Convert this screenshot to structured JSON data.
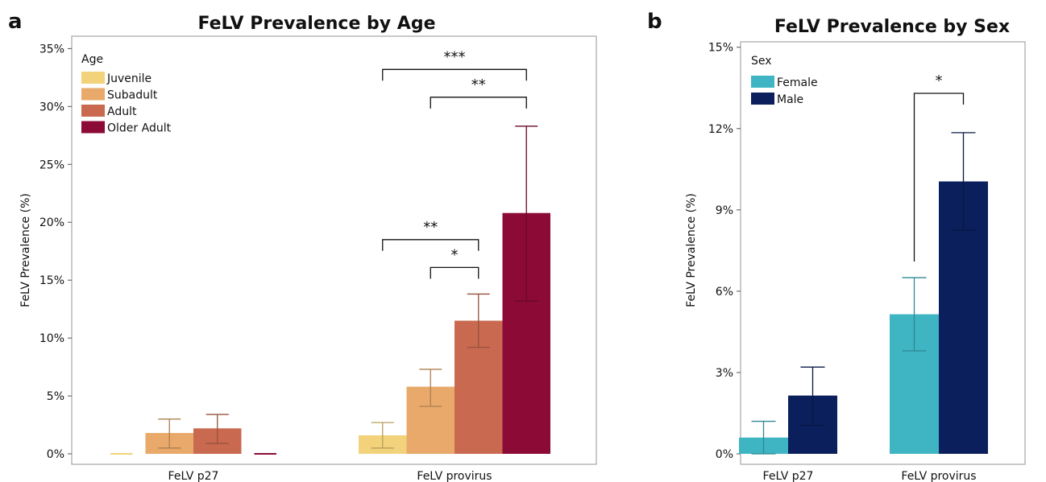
{
  "chart_data": [
    {
      "panel_label": "a",
      "type": "bar",
      "title": "FeLV Prevalence by Age",
      "xlabel": "",
      "ylabel": "FeLV Prevalence (%)",
      "ylim": [
        0,
        36
      ],
      "yticks": [
        0,
        5,
        10,
        15,
        20,
        25,
        30,
        35
      ],
      "ytick_labels": [
        "0%",
        "5%",
        "10%",
        "15%",
        "20%",
        "25%",
        "30%",
        "35%"
      ],
      "categories": [
        "FeLV p27",
        "FeLV provirus"
      ],
      "legend": {
        "title": "Age",
        "position": "top-left"
      },
      "grid": false,
      "series": [
        {
          "name": "Juvenile",
          "color": "#F2D27A",
          "values": [
            0.0,
            1.6
          ],
          "err_low": [
            0.0,
            0.5
          ],
          "err_high": [
            0.0,
            2.7
          ]
        },
        {
          "name": "Subadult",
          "color": "#E8A96A",
          "values": [
            1.8,
            5.8
          ],
          "err_low": [
            0.5,
            4.1
          ],
          "err_high": [
            3.0,
            7.3
          ]
        },
        {
          "name": "Adult",
          "color": "#C96A50",
          "values": [
            2.2,
            11.5
          ],
          "err_low": [
            0.9,
            9.2
          ],
          "err_high": [
            3.4,
            13.8
          ]
        },
        {
          "name": "Older Adult",
          "color": "#8C0A36",
          "values": [
            0.0,
            20.8
          ],
          "err_low": [
            0.0,
            13.2
          ],
          "err_high": [
            0.0,
            28.3
          ]
        }
      ],
      "significance": [
        {
          "category": 1,
          "from": 0,
          "to": 3,
          "label": "***",
          "y": 33.2
        },
        {
          "category": 1,
          "from": 1,
          "to": 3,
          "label": "**",
          "y": 30.8
        },
        {
          "category": 1,
          "from": 0,
          "to": 2,
          "label": "**",
          "y": 18.5
        },
        {
          "category": 1,
          "from": 1,
          "to": 2,
          "label": "*",
          "y": 16.1
        }
      ]
    },
    {
      "panel_label": "b",
      "type": "bar",
      "title": "FeLV Prevalence by Sex",
      "xlabel": "",
      "ylabel": "FeLV Prevalence (%)",
      "ylim": [
        0,
        15.2
      ],
      "yticks": [
        0,
        3,
        6,
        9,
        12,
        15
      ],
      "ytick_labels": [
        "0%",
        "3%",
        "6%",
        "9%",
        "12%",
        "15%"
      ],
      "categories": [
        "FeLV p27",
        "FeLV provirus"
      ],
      "legend": {
        "title": "Sex",
        "position": "top-left"
      },
      "grid": false,
      "series": [
        {
          "name": "Female",
          "color": "#3FB5C4",
          "values": [
            0.6,
            5.15
          ],
          "err_low": [
            0.0,
            3.8
          ],
          "err_high": [
            1.2,
            6.5
          ]
        },
        {
          "name": "Male",
          "color": "#0B1F5C",
          "values": [
            2.15,
            10.05
          ],
          "err_low": [
            1.05,
            8.25
          ],
          "err_high": [
            3.2,
            11.85
          ]
        }
      ],
      "significance": [
        {
          "category": 1,
          "from": 0,
          "to": 1,
          "label": "*",
          "y": 13.3
        }
      ]
    }
  ]
}
